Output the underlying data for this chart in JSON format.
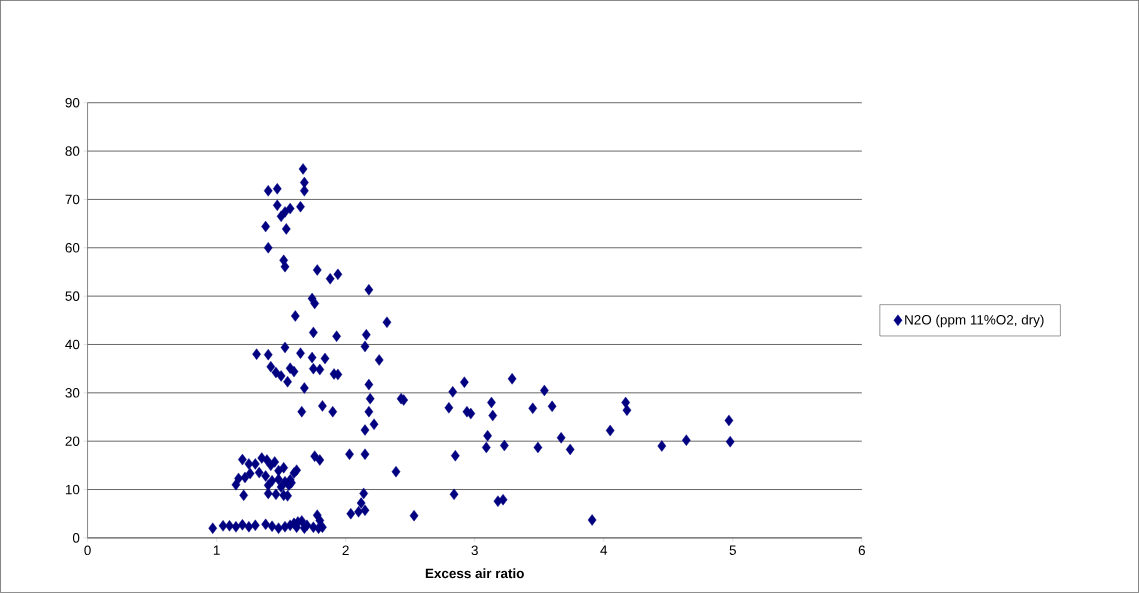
{
  "chart_data": {
    "type": "scatter",
    "xlabel": "Excess air ratio",
    "xlim": [
      0,
      6
    ],
    "xticks": [
      0,
      1,
      2,
      3,
      4,
      5,
      6
    ],
    "ylim": [
      0,
      90
    ],
    "yticks": [
      0,
      10,
      20,
      30,
      40,
      50,
      60,
      70,
      80,
      90
    ],
    "grid": "y",
    "legend": "right",
    "marker": "diamond",
    "series": [
      {
        "name": "N2O (ppm 11%O2, dry)",
        "color": "#000080",
        "x": [
          1.67,
          1.68,
          1.68,
          1.4,
          1.47,
          1.47,
          1.57,
          1.65,
          1.5,
          1.53,
          1.38,
          1.54,
          1.4,
          1.52,
          1.53,
          1.78,
          1.88,
          1.94,
          1.74,
          1.76,
          2.18,
          1.61,
          2.32,
          1.75,
          1.93,
          2.16,
          2.15,
          1.31,
          1.4,
          1.53,
          1.65,
          1.74,
          1.84,
          2.26,
          1.42,
          1.46,
          1.5,
          1.57,
          1.6,
          1.75,
          1.8,
          1.91,
          1.94,
          1.55,
          1.68,
          2.18,
          2.19,
          2.43,
          2.45,
          1.82,
          1.66,
          1.9,
          2.18,
          2.22,
          2.15,
          2.03,
          2.15,
          1.76,
          1.8,
          2.39,
          2.14,
          2.12,
          2.1,
          2.15,
          2.04,
          2.53,
          2.8,
          2.83,
          2.92,
          2.94,
          2.97,
          2.85,
          2.84,
          3.09,
          3.1,
          3.13,
          3.14,
          3.23,
          3.18,
          3.22,
          3.29,
          3.45,
          3.49,
          3.54,
          3.6,
          3.67,
          3.74,
          3.91,
          4.05,
          4.17,
          4.18,
          4.45,
          4.64,
          4.97,
          4.98,
          1.2,
          1.25,
          1.17,
          1.22,
          1.15,
          1.21,
          1.26,
          1.3,
          1.35,
          1.39,
          1.42,
          1.45,
          1.33,
          1.38,
          1.4,
          1.43,
          1.4,
          1.46,
          1.48,
          1.5,
          1.52,
          1.55,
          1.56,
          1.57,
          1.6,
          1.62,
          1.53,
          1.58,
          1.48,
          1.52,
          0.97,
          1.05,
          1.1,
          1.15,
          1.2,
          1.25,
          1.3,
          1.38,
          1.43,
          1.48,
          1.53,
          1.57,
          1.6,
          1.63,
          1.66,
          1.7,
          1.75,
          1.78,
          1.8,
          1.79,
          1.82,
          1.62,
          1.68
        ],
        "values": [
          76.3,
          73.5,
          71.8,
          71.8,
          72.2,
          68.8,
          68.1,
          68.5,
          66.5,
          67.4,
          64.4,
          63.9,
          60.0,
          57.4,
          56.1,
          55.4,
          53.6,
          54.5,
          49.5,
          48.5,
          51.3,
          45.9,
          44.6,
          42.5,
          41.7,
          42.0,
          39.6,
          38.0,
          37.9,
          39.4,
          38.2,
          37.3,
          37.1,
          36.8,
          35.4,
          34.2,
          33.5,
          35.1,
          34.4,
          35.0,
          34.8,
          33.9,
          33.8,
          32.3,
          31.0,
          31.7,
          28.8,
          28.8,
          28.5,
          27.3,
          26.1,
          26.1,
          26.1,
          23.5,
          22.3,
          17.3,
          17.3,
          16.9,
          16.1,
          13.7,
          9.2,
          7.2,
          5.4,
          5.7,
          5.0,
          4.6,
          26.9,
          30.2,
          32.2,
          26.1,
          25.7,
          17.0,
          9.0,
          18.7,
          21.1,
          28.0,
          25.3,
          19.1,
          7.6,
          7.9,
          32.9,
          26.8,
          18.7,
          30.5,
          27.2,
          20.7,
          18.3,
          3.7,
          22.2,
          28.0,
          26.4,
          19.0,
          20.2,
          24.3,
          19.9,
          16.2,
          15.3,
          12.3,
          12.5,
          11.0,
          8.8,
          13.3,
          15.3,
          16.5,
          16.1,
          15.0,
          15.7,
          13.5,
          12.8,
          10.9,
          11.8,
          9.2,
          9.0,
          12.1,
          10.5,
          8.8,
          8.7,
          10.9,
          12.0,
          13.4,
          14.0,
          11.6,
          11.4,
          13.9,
          14.5,
          2.0,
          2.5,
          2.5,
          2.3,
          2.7,
          2.3,
          2.6,
          2.8,
          2.4,
          2.0,
          2.3,
          2.6,
          3.0,
          3.3,
          3.5,
          2.6,
          2.2,
          4.7,
          3.6,
          2.0,
          2.2,
          2.2,
          2.0
        ]
      }
    ]
  }
}
